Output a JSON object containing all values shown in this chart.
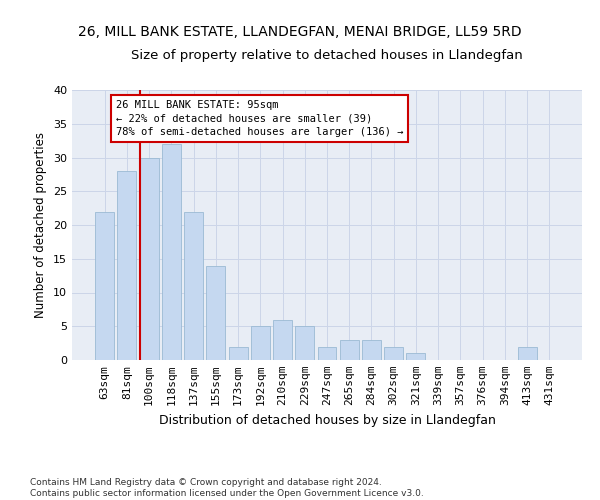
{
  "title_line1": "26, MILL BANK ESTATE, LLANDEGFAN, MENAI BRIDGE, LL59 5RD",
  "title_line2": "Size of property relative to detached houses in Llandegfan",
  "xlabel": "Distribution of detached houses by size in Llandegfan",
  "ylabel": "Number of detached properties",
  "categories": [
    "63sqm",
    "81sqm",
    "100sqm",
    "118sqm",
    "137sqm",
    "155sqm",
    "173sqm",
    "192sqm",
    "210sqm",
    "229sqm",
    "247sqm",
    "265sqm",
    "284sqm",
    "302sqm",
    "321sqm",
    "339sqm",
    "357sqm",
    "376sqm",
    "394sqm",
    "413sqm",
    "431sqm"
  ],
  "values": [
    22,
    28,
    30,
    32,
    22,
    14,
    2,
    5,
    6,
    5,
    2,
    3,
    3,
    2,
    1,
    0,
    0,
    0,
    0,
    2,
    0
  ],
  "bar_color": "#c5d8f0",
  "bar_edgecolor": "#9bbad4",
  "vline_index": 2,
  "vline_color": "#cc0000",
  "annotation_text": "26 MILL BANK ESTATE: 95sqm\n← 22% of detached houses are smaller (39)\n78% of semi-detached houses are larger (136) →",
  "annotation_box_facecolor": "#ffffff",
  "annotation_box_edgecolor": "#cc0000",
  "ylim": [
    0,
    40
  ],
  "yticks": [
    0,
    5,
    10,
    15,
    20,
    25,
    30,
    35,
    40
  ],
  "grid_color": "#ccd5e8",
  "bg_color": "#e8edf5",
  "footer": "Contains HM Land Registry data © Crown copyright and database right 2024.\nContains public sector information licensed under the Open Government Licence v3.0.",
  "title_fontsize": 10,
  "subtitle_fontsize": 9.5,
  "xlabel_fontsize": 9,
  "ylabel_fontsize": 8.5,
  "tick_fontsize": 8,
  "footer_fontsize": 6.5,
  "annotation_fontsize": 7.5
}
